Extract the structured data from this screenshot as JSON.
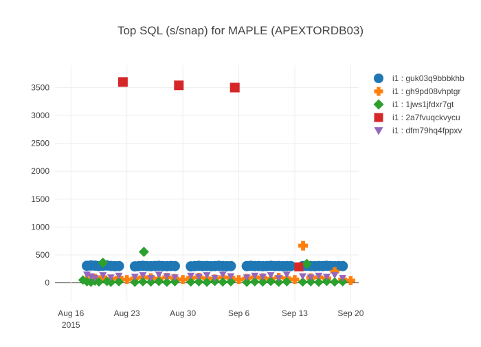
{
  "chart_data": {
    "type": "scatter",
    "title": "Top SQL (s/snap) for MAPLE (APEXTORDB03)",
    "xlabel": "",
    "ylabel": "",
    "x_range": [
      "2015-08-14",
      "2015-09-21"
    ],
    "ylim": [
      -350,
      3900
    ],
    "grid": true,
    "legend_position": "top-right",
    "x_ticks": [
      {
        "label": "Aug 16",
        "sub": "2015",
        "date": "2015-08-16"
      },
      {
        "label": "Aug 23",
        "sub": "",
        "date": "2015-08-23"
      },
      {
        "label": "Aug 30",
        "sub": "",
        "date": "2015-08-30"
      },
      {
        "label": "Sep 6",
        "sub": "",
        "date": "2015-09-06"
      },
      {
        "label": "Sep 13",
        "sub": "",
        "date": "2015-09-13"
      },
      {
        "label": "Sep 20",
        "sub": "",
        "date": "2015-09-20"
      }
    ],
    "y_ticks": [
      0,
      500,
      1000,
      1500,
      2000,
      2500,
      3000,
      3500
    ],
    "series": [
      {
        "name": "i1 : guk03q9bbbkhb",
        "color": "#1f77b4",
        "marker": "circle",
        "points": [
          [
            "2015-08-18",
            305
          ],
          [
            "2015-08-18T12:00",
            310
          ],
          [
            "2015-08-19",
            308
          ],
          [
            "2015-08-19T12:00",
            300
          ],
          [
            "2015-08-20",
            305
          ],
          [
            "2015-08-20T12:00",
            310
          ],
          [
            "2015-08-21",
            302
          ],
          [
            "2015-08-21T12:00",
            298
          ],
          [
            "2015-08-22",
            300
          ],
          [
            "2015-08-24",
            295
          ],
          [
            "2015-08-24T12:00",
            300
          ],
          [
            "2015-08-25",
            305
          ],
          [
            "2015-08-25T12:00",
            300
          ],
          [
            "2015-08-26",
            298
          ],
          [
            "2015-08-26T12:00",
            302
          ],
          [
            "2015-08-27",
            305
          ],
          [
            "2015-08-27T12:00",
            300
          ],
          [
            "2015-08-28",
            298
          ],
          [
            "2015-08-28T12:00",
            302
          ],
          [
            "2015-08-29",
            300
          ],
          [
            "2015-08-31",
            295
          ],
          [
            "2015-08-31T12:00",
            300
          ],
          [
            "2015-09-01",
            305
          ],
          [
            "2015-09-01T12:00",
            300
          ],
          [
            "2015-09-02",
            302
          ],
          [
            "2015-09-02T12:00",
            298
          ],
          [
            "2015-09-03",
            300
          ],
          [
            "2015-09-03T12:00",
            305
          ],
          [
            "2015-09-04",
            300
          ],
          [
            "2015-09-04T12:00",
            298
          ],
          [
            "2015-09-05",
            300
          ],
          [
            "2015-09-07",
            300
          ],
          [
            "2015-09-07T12:00",
            305
          ],
          [
            "2015-09-08",
            300
          ],
          [
            "2015-09-08T12:00",
            302
          ],
          [
            "2015-09-09",
            298
          ],
          [
            "2015-09-09T12:00",
            300
          ],
          [
            "2015-09-10",
            305
          ],
          [
            "2015-09-10T12:00",
            300
          ],
          [
            "2015-09-11",
            302
          ],
          [
            "2015-09-11T12:00",
            298
          ],
          [
            "2015-09-12",
            300
          ],
          [
            "2015-09-12T12:00",
            300
          ],
          [
            "2015-09-14",
            300
          ],
          [
            "2015-09-14T12:00",
            305
          ],
          [
            "2015-09-15",
            300
          ],
          [
            "2015-09-15T12:00",
            298
          ],
          [
            "2015-09-16",
            302
          ],
          [
            "2015-09-16T12:00",
            300
          ],
          [
            "2015-09-17",
            305
          ],
          [
            "2015-09-17T12:00",
            300
          ],
          [
            "2015-09-18",
            298
          ],
          [
            "2015-09-18T12:00",
            300
          ],
          [
            "2015-09-19",
            300
          ]
        ]
      },
      {
        "name": "i1 : gh9pd08vhptgr",
        "color": "#ff7f0e",
        "marker": "cross",
        "points": [
          [
            "2015-08-18",
            60
          ],
          [
            "2015-08-19",
            80
          ],
          [
            "2015-08-20",
            100
          ],
          [
            "2015-08-21",
            70
          ],
          [
            "2015-08-22",
            90
          ],
          [
            "2015-08-23",
            60
          ],
          [
            "2015-08-24",
            80
          ],
          [
            "2015-08-25",
            100
          ],
          [
            "2015-08-26",
            90
          ],
          [
            "2015-08-27",
            70
          ],
          [
            "2015-08-28",
            100
          ],
          [
            "2015-08-29",
            80
          ],
          [
            "2015-08-30",
            60
          ],
          [
            "2015-08-31",
            90
          ],
          [
            "2015-09-01",
            100
          ],
          [
            "2015-09-02",
            80
          ],
          [
            "2015-09-03",
            70
          ],
          [
            "2015-09-04",
            100
          ],
          [
            "2015-09-05",
            90
          ],
          [
            "2015-09-06",
            60
          ],
          [
            "2015-09-07",
            80
          ],
          [
            "2015-09-08",
            100
          ],
          [
            "2015-09-09",
            90
          ],
          [
            "2015-09-10",
            70
          ],
          [
            "2015-09-11",
            100
          ],
          [
            "2015-09-12",
            80
          ],
          [
            "2015-09-13",
            60
          ],
          [
            "2015-09-14T01:00",
            665
          ],
          [
            "2015-09-15",
            90
          ],
          [
            "2015-09-16",
            100
          ],
          [
            "2015-09-17",
            80
          ],
          [
            "2015-09-18",
            200
          ],
          [
            "2015-09-19",
            60
          ],
          [
            "2015-09-20",
            40
          ]
        ]
      },
      {
        "name": "i1 : 1jws1jfdxr7gt",
        "color": "#2ca02c",
        "marker": "diamond",
        "points": [
          [
            "2015-08-17T12:00",
            50
          ],
          [
            "2015-08-18",
            20
          ],
          [
            "2015-08-18T12:00",
            10
          ],
          [
            "2015-08-19",
            30
          ],
          [
            "2015-08-19T12:00",
            15
          ],
          [
            "2015-08-20",
            360
          ],
          [
            "2015-08-20T12:00",
            25
          ],
          [
            "2015-08-21",
            10
          ],
          [
            "2015-08-22",
            20
          ],
          [
            "2015-08-24",
            10
          ],
          [
            "2015-08-25",
            20
          ],
          [
            "2015-08-25T03:00",
            555
          ],
          [
            "2015-08-26",
            15
          ],
          [
            "2015-08-27",
            25
          ],
          [
            "2015-08-28",
            10
          ],
          [
            "2015-08-29",
            20
          ],
          [
            "2015-08-31",
            15
          ],
          [
            "2015-09-01",
            20
          ],
          [
            "2015-09-02",
            10
          ],
          [
            "2015-09-03",
            25
          ],
          [
            "2015-09-04",
            15
          ],
          [
            "2015-09-05",
            20
          ],
          [
            "2015-09-07",
            10
          ],
          [
            "2015-09-08",
            20
          ],
          [
            "2015-09-09",
            15
          ],
          [
            "2015-09-10",
            25
          ],
          [
            "2015-09-11",
            10
          ],
          [
            "2015-09-12",
            20
          ],
          [
            "2015-09-14",
            15
          ],
          [
            "2015-09-14T12:00",
            340
          ],
          [
            "2015-09-15",
            20
          ],
          [
            "2015-09-16",
            10
          ],
          [
            "2015-09-17",
            25
          ],
          [
            "2015-09-18",
            15
          ],
          [
            "2015-09-19",
            20
          ]
        ]
      },
      {
        "name": "i1 : 2a7fvuqckvycu",
        "color": "#d62728",
        "marker": "square",
        "points": [
          [
            "2015-08-22T12:00",
            3600
          ],
          [
            "2015-08-29T12:00",
            3540
          ],
          [
            "2015-09-05T12:00",
            3500
          ],
          [
            "2015-09-13T12:00",
            285
          ]
        ]
      },
      {
        "name": "i1 : dfm79hq4fppxv",
        "color": "#9467bd",
        "marker": "triangle-down",
        "points": [
          [
            "2015-08-18",
            150
          ],
          [
            "2015-08-18T12:00",
            120
          ],
          [
            "2015-08-19",
            90
          ],
          [
            "2015-08-20",
            140
          ],
          [
            "2015-08-21",
            100
          ],
          [
            "2015-08-22",
            130
          ],
          [
            "2015-08-24",
            110
          ],
          [
            "2015-08-25",
            140
          ],
          [
            "2015-08-26",
            90
          ],
          [
            "2015-08-27",
            150
          ],
          [
            "2015-08-28",
            120
          ],
          [
            "2015-08-29",
            100
          ],
          [
            "2015-08-31",
            130
          ],
          [
            "2015-09-01",
            110
          ],
          [
            "2015-09-02",
            140
          ],
          [
            "2015-09-03",
            90
          ],
          [
            "2015-09-04",
            150
          ],
          [
            "2015-09-05",
            120
          ],
          [
            "2015-09-07",
            100
          ],
          [
            "2015-09-08",
            130
          ],
          [
            "2015-09-09",
            110
          ],
          [
            "2015-09-10",
            140
          ],
          [
            "2015-09-11",
            90
          ],
          [
            "2015-09-12",
            150
          ],
          [
            "2015-09-14",
            120
          ],
          [
            "2015-09-15",
            100
          ],
          [
            "2015-09-16",
            130
          ],
          [
            "2015-09-17",
            110
          ],
          [
            "2015-09-18",
            140
          ],
          [
            "2015-09-19",
            90
          ]
        ]
      }
    ]
  }
}
